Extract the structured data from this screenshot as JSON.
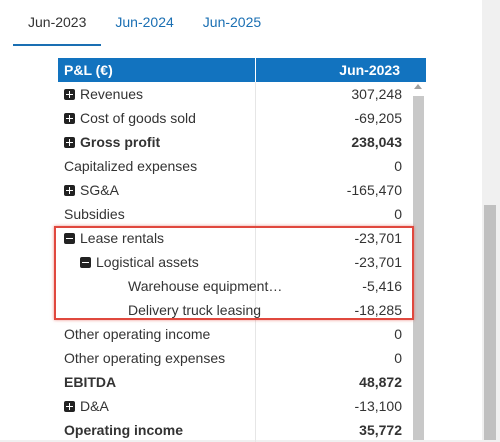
{
  "tabs": [
    {
      "label": "Jun-2023",
      "active": true
    },
    {
      "label": "Jun-2024",
      "active": false
    },
    {
      "label": "Jun-2025",
      "active": false
    }
  ],
  "table": {
    "header": {
      "label": "P&L (€)",
      "value": "Jun-2023"
    },
    "rows": [
      {
        "label": "Revenues",
        "value": "307,248",
        "toggle": "plus",
        "bold": false,
        "indent": 0
      },
      {
        "label": "Cost of goods sold",
        "value": "-69,205",
        "toggle": "plus",
        "bold": false,
        "indent": 0
      },
      {
        "label": "Gross profit",
        "value": "238,043",
        "toggle": "plus",
        "bold": true,
        "indent": 0
      },
      {
        "label": "Capitalized expenses",
        "value": "0",
        "toggle": "",
        "bold": false,
        "indent": 0
      },
      {
        "label": "SG&A",
        "value": "-165,470",
        "toggle": "plus",
        "bold": false,
        "indent": 0
      },
      {
        "label": "Subsidies",
        "value": "0",
        "toggle": "",
        "bold": false,
        "indent": 0
      },
      {
        "label": "Lease rentals",
        "value": "-23,701",
        "toggle": "minus",
        "bold": false,
        "indent": 0
      },
      {
        "label": "Logistical assets",
        "value": "-23,701",
        "toggle": "minus",
        "bold": false,
        "indent": 1
      },
      {
        "label": "Warehouse equipment…",
        "value": "-5,416",
        "toggle": "",
        "bold": false,
        "indent": 2
      },
      {
        "label": "Delivery truck leasing",
        "value": "-18,285",
        "toggle": "",
        "bold": false,
        "indent": 2
      },
      {
        "label": "Other operating income",
        "value": "0",
        "toggle": "",
        "bold": false,
        "indent": 0
      },
      {
        "label": "Other operating expenses",
        "value": "0",
        "toggle": "",
        "bold": false,
        "indent": 0
      },
      {
        "label": "EBITDA",
        "value": "48,872",
        "toggle": "",
        "bold": true,
        "indent": 0
      },
      {
        "label": "D&A",
        "value": "-13,100",
        "toggle": "plus",
        "bold": false,
        "indent": 0
      },
      {
        "label": "Operating income",
        "value": "35,772",
        "toggle": "",
        "bold": true,
        "indent": 0
      }
    ]
  },
  "colors": {
    "header": "#1273bf",
    "highlight": "#e0483e"
  }
}
